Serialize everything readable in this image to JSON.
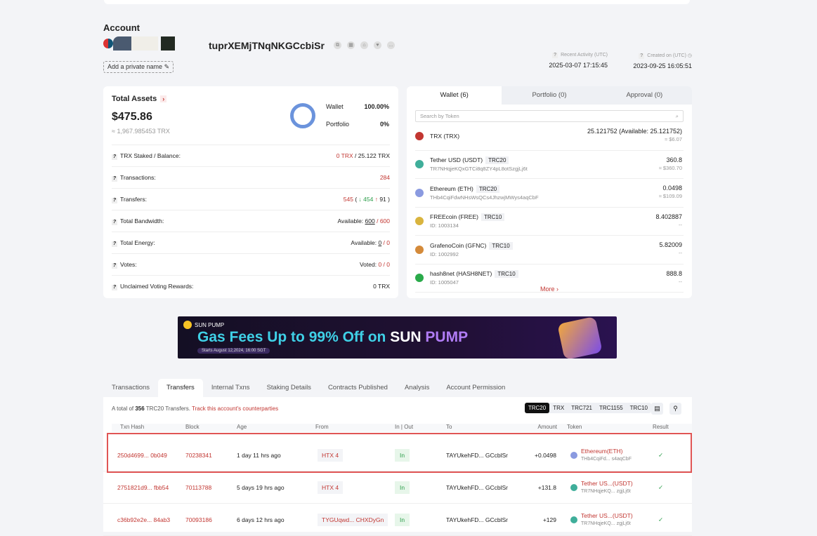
{
  "account": {
    "title": "Account",
    "address": "tuprXEMjTNqNKGCcbiSr",
    "private_name": "Add a private name",
    "recent_activity_label": "Recent Activity (UTC)",
    "recent_activity": "2025-03-07 17:15:45",
    "created_label": "Created on (UTC)",
    "created": "2023-09-25 16:05:51"
  },
  "assets": {
    "title": "Total Assets",
    "value": "$475.86",
    "trx": "≈ 1,967.985453 TRX",
    "legend": [
      {
        "label": "Wallet",
        "value": "100.00%"
      },
      {
        "label": "Portfolio",
        "value": "0%"
      }
    ],
    "donut_color": "#6b93dc",
    "rows": [
      {
        "label": "TRX Staked / Balance:",
        "v1": "0 TRX",
        "sep": " / ",
        "v2": "25.122 TRX"
      },
      {
        "label": "Transactions:",
        "v1": "284"
      },
      {
        "label": "Transfers:",
        "v1": "545",
        "in": "454",
        "out": "91"
      },
      {
        "label": "Total Bandwidth:",
        "prefix": "Available: ",
        "v1": "600",
        "sep": " / ",
        "v2": "600"
      },
      {
        "label": "Total Energy:",
        "prefix": "Available: ",
        "v1": "0",
        "sep": " / ",
        "v2": "0"
      },
      {
        "label": "Votes:",
        "prefix": "Voted: ",
        "v1": "0",
        "sep": " / ",
        "v2": "0"
      },
      {
        "label": "Unclaimed Voting Rewards:",
        "v1": "0 TRX"
      }
    ]
  },
  "wallet": {
    "tabs": [
      "Wallet (6)",
      "Portfolio (0)",
      "Approval (0)"
    ],
    "search_placeholder": "Search by Token",
    "tokens": [
      {
        "name": "TRX (TRX)",
        "badge": "",
        "sub": "",
        "amount": "25.121752 (Available: 25.121752)",
        "usd": "≈ $6.07",
        "color": "#c23631"
      },
      {
        "name": "Tether USD (USDT)",
        "badge": "TRC20",
        "sub": "TR7NHqjeKQxGTCi8q8ZY4pL8otSzgjLj6t",
        "amount": "360.8",
        "usd": "≈ $360.70",
        "color": "#3fae9a"
      },
      {
        "name": "Ethereum (ETH)",
        "badge": "TRC20",
        "sub": "THb4CqiFdwNHsWsQCs4JhzwjMWys4aqCbF",
        "amount": "0.0498",
        "usd": "≈ $109.09",
        "color": "#8a9ae0"
      },
      {
        "name": "FREEcoin (FREE)",
        "badge": "TRC10",
        "sub": "ID: 1003134",
        "amount": "8.402887",
        "usd": "--",
        "color": "#d9b43e"
      },
      {
        "name": "GrafenoCoin (GFNC)",
        "badge": "TRC10",
        "sub": "ID: 1002992",
        "amount": "5.82009",
        "usd": "--",
        "color": "#d48a3a"
      },
      {
        "name": "hash8net (HASH8NET)",
        "badge": "TRC10",
        "sub": "ID: 1005047",
        "amount": "888.8",
        "usd": "--",
        "color": "#2aaa4a"
      }
    ],
    "more": "More ›"
  },
  "banner": {
    "brand": "SUN PUMP",
    "headline_a": "Gas Fees Up to 99% Off on ",
    "headline_sun": "SUN",
    "headline_pump": " PUMP",
    "date": "Starts August 12,2024, 16:00 SGT"
  },
  "tabs": [
    "Transactions",
    "Transfers",
    "Internal Txns",
    "Staking Details",
    "Contracts Published",
    "Analysis",
    "Account Permission"
  ],
  "transfers": {
    "summary_a": "A total of ",
    "count": "356",
    "summary_b": " TRC20 Transfers. ",
    "track": "Track this account's counterparties",
    "filters": [
      "TRC20",
      "TRX",
      "TRC721",
      "TRC1155",
      "TRC10"
    ],
    "columns": [
      "Txn Hash",
      "Block",
      "Age",
      "From",
      "In | Out",
      "To",
      "Amount",
      "Token",
      "Result"
    ],
    "rows": [
      {
        "hash": "250d4699... 0b049",
        "block": "70238341",
        "age": "1 day 11 hrs ago",
        "from": "HTX 4",
        "dir": "In",
        "to": "TAYUkehFD... GCcblSr",
        "amount": "+0.0498",
        "token": "Ethereum(ETH)",
        "token_addr": "THb4CqiFd... s4aqCbF",
        "token_color": "#8a9ae0"
      },
      {
        "hash": "2751821d9... fbb54",
        "block": "70113788",
        "age": "5 days 19 hrs ago",
        "from": "HTX 4",
        "dir": "In",
        "to": "TAYUkehFD... GCcblSr",
        "amount": "+131.8",
        "token": "Tether US...(USDT)",
        "token_addr": "TR7NHqjeKQ... zgjLj6t",
        "token_color": "#3fae9a"
      },
      {
        "hash": "c36b92e2e... 84ab3",
        "block": "70093186",
        "age": "6 days 12 hrs ago",
        "from": "TYGUqwd... CHXDyGn",
        "dir": "In",
        "to": "TAYUkehFD... GCcblSr",
        "amount": "+129",
        "token": "Tether US...(USDT)",
        "token_addr": "TR7NHqjeKQ... zgjLj6t",
        "token_color": "#3fae9a"
      }
    ]
  }
}
